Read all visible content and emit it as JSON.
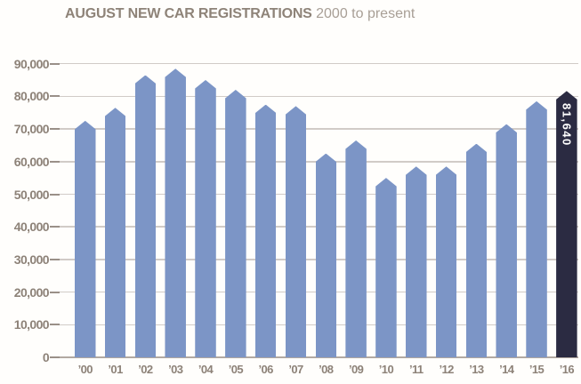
{
  "title": {
    "main": "AUGUST NEW CAR REGISTRATIONS",
    "subtitle": "2000 to present"
  },
  "chart_data": {
    "type": "bar",
    "title": "AUGUST NEW CAR REGISTRATIONS 2000 to present",
    "xlabel": "",
    "ylabel": "",
    "categories": [
      "’00",
      "’01",
      "’02",
      "’03",
      "’04",
      "’05",
      "’06",
      "’07",
      "’08",
      "’09",
      "’10",
      "’11",
      "’12",
      "’13",
      "’14",
      "’15",
      "’16"
    ],
    "values": [
      72500,
      76500,
      86500,
      88500,
      85000,
      82000,
      77500,
      77000,
      62500,
      66500,
      55000,
      58500,
      58500,
      65500,
      71500,
      78500,
      81640
    ],
    "ylim": [
      0,
      90000
    ],
    "ytick_interval": 10000,
    "ytick_labels": [
      "0",
      "10,000",
      "20,000",
      "30,000",
      "40,000",
      "50,000",
      "60,000",
      "70,000",
      "80,000",
      "90,000"
    ],
    "grid": "horizontal",
    "legend": "none",
    "highlight": {
      "category": "’16",
      "value": 81640,
      "label": "81,640"
    },
    "colors": {
      "bar": "#7c95c6",
      "highlight_bar": "#2b2b42",
      "highlight_text": "#ffffff"
    }
  }
}
